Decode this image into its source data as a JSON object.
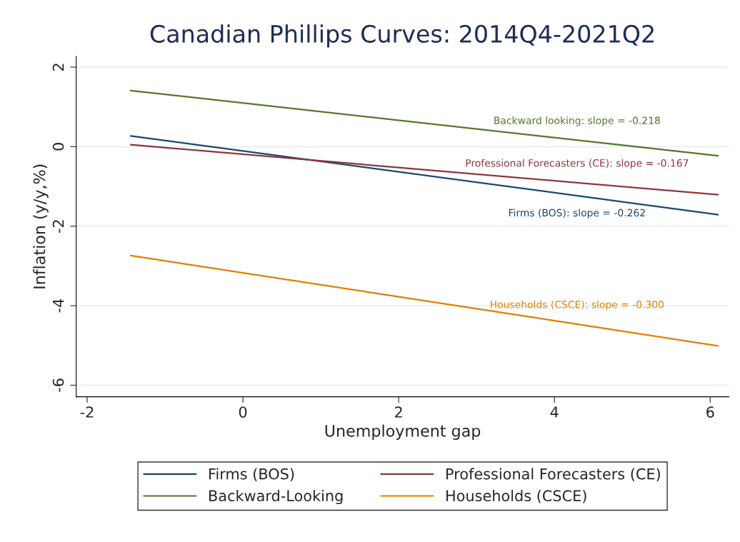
{
  "chart_data": {
    "type": "line",
    "title": "Canadian Phillips Curves: 2014Q4-2021Q2",
    "xlabel": "Unemployment gap",
    "ylabel": "Inflation (y/y,%)",
    "xlim": [
      -2.14,
      6.24
    ],
    "xticks": [
      -2,
      0,
      2,
      4,
      6
    ],
    "ylim": [
      -6.29,
      2.27
    ],
    "yticks": [
      -6,
      -4,
      -2,
      0,
      2
    ],
    "grid": "y",
    "legend": "bottom",
    "line_style": "solid",
    "marker": "none",
    "x": [
      -1.44,
      6.1
    ],
    "series": [
      {
        "name": "Firms (BOS)",
        "color": "#1a476f",
        "values": [
          0.27,
          -1.71
        ]
      },
      {
        "name": "Professional Forecasters (CE)",
        "color": "#90353b",
        "values": [
          0.05,
          -1.21
        ]
      },
      {
        "name": "Backward-Looking",
        "color": "#55752f",
        "values": [
          1.41,
          -0.23
        ]
      },
      {
        "name": "Households (CSCE)",
        "color": "#e37e00",
        "values": [
          -2.74,
          -5.01
        ]
      }
    ],
    "annotations": [
      "Firms (BOS): slope = -0.262",
      "Professional Forecasters (CE): slope = -0.167",
      "Backward looking: slope = -0.218",
      "Households (CSCE): slope = -0.300"
    ]
  }
}
